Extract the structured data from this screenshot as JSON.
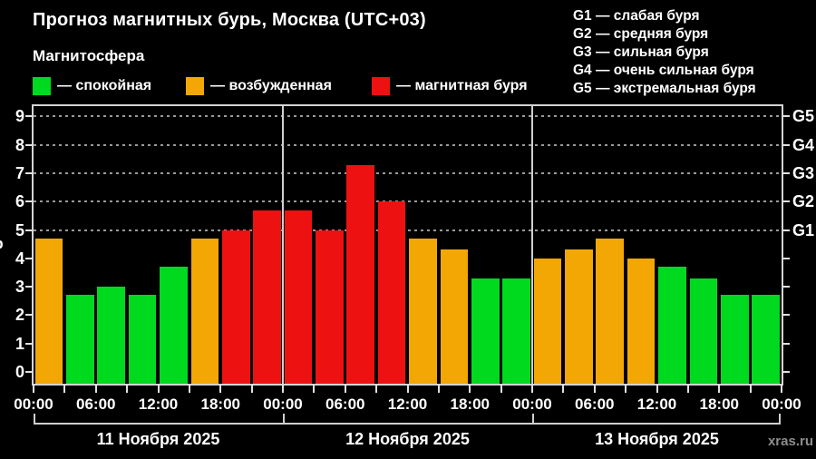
{
  "header": {
    "title": "Прогноз магнитных бурь, Москва (UTC+03)",
    "subtitle": "Магнитосфера",
    "watermark": "xras.ru"
  },
  "legend": {
    "items": [
      {
        "key": "quiet",
        "label": "— спокойная",
        "color": "#00da1e"
      },
      {
        "key": "unsettled",
        "label": "— возбужденная",
        "color": "#f3a705"
      },
      {
        "key": "storm",
        "label": "— магнитная буря",
        "color": "#ee1111"
      }
    ]
  },
  "g_scale_legend": [
    "G1 — слабая буря",
    "G2 — средняя буря",
    "G3 — сильная буря",
    "G4 — очень сильная буря",
    "G5 — экстремальная буря"
  ],
  "chart_data": {
    "type": "bar",
    "title": "Прогноз магнитных бурь, Москва (UTC+03)",
    "ylabel": "Kp",
    "ylim": [
      0,
      9.35
    ],
    "yticks": [
      0,
      1,
      2,
      3,
      4,
      5,
      6,
      7,
      8,
      9
    ],
    "gridlines_at": [
      5,
      6,
      7,
      8,
      9
    ],
    "grid": "dashed horizontal at G-levels only",
    "legend_position": "top",
    "g_levels": [
      {
        "value": 5,
        "label": "G1"
      },
      {
        "value": 6,
        "label": "G2"
      },
      {
        "value": 7,
        "label": "G3"
      },
      {
        "value": 8,
        "label": "G4"
      },
      {
        "value": 9,
        "label": "G5"
      }
    ],
    "x_tick_labels": [
      "00:00",
      "06:00",
      "12:00",
      "18:00",
      "00:00",
      "06:00",
      "12:00",
      "18:00",
      "00:00",
      "06:00",
      "12:00",
      "18:00",
      "00:00"
    ],
    "interval_hours": 3,
    "days": [
      {
        "date": "11 Ноября 2025",
        "values": [
          4.7,
          2.7,
          3.0,
          2.7,
          3.7,
          4.7,
          5.0,
          5.7
        ]
      },
      {
        "date": "12 Ноября 2025",
        "values": [
          5.7,
          5.0,
          7.3,
          6.0,
          4.7,
          4.3,
          3.3,
          3.3
        ]
      },
      {
        "date": "13 Ноября 2025",
        "values": [
          4.0,
          4.3,
          4.7,
          4.0,
          3.7,
          3.3,
          2.7,
          2.7
        ]
      }
    ],
    "thresholds": {
      "unsettled_min_kp": 4,
      "storm_min_kp": 5
    },
    "colors": {
      "quiet": "#00da1e",
      "unsettled": "#f3a705",
      "storm": "#ee1111"
    }
  }
}
